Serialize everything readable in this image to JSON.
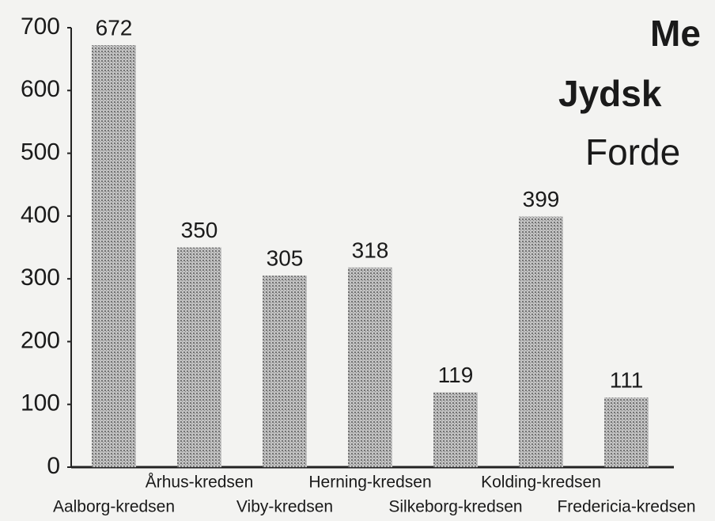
{
  "chart_data": {
    "type": "bar",
    "title_lines": [
      "Me",
      "Jydsk",
      "Forde"
    ],
    "categories": [
      "Aalborg-kredsen",
      "Århus-kredsen",
      "Viby-kredsen",
      "Herning-kredsen",
      "Silkeborg-kredsen",
      "Kolding-kredsen",
      "Fredericia-kredsen"
    ],
    "values": [
      672,
      350,
      305,
      318,
      119,
      399,
      111
    ],
    "color": "#a4a4a4",
    "ylim": [
      0,
      700
    ],
    "yticks": [
      0,
      100,
      200,
      300,
      400,
      500,
      600,
      700
    ],
    "grid": false
  }
}
